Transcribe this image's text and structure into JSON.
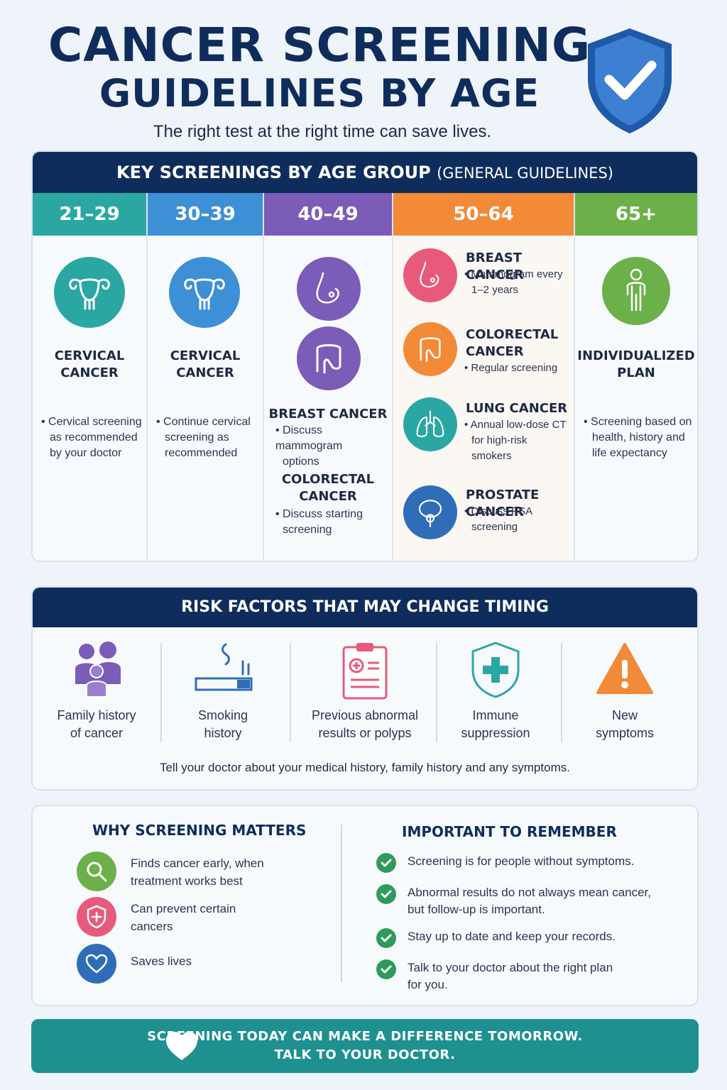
{
  "header": {
    "title_line1": "CANCER SCREENING",
    "title_line2": "GUIDELINES BY AGE",
    "subtitle": "The right test at the right time can save lives.",
    "shield_icon": "shield-check-icon"
  },
  "key_screenings": {
    "heading": "KEY SCREENINGS BY AGE GROUP",
    "heading_suffix": "(GENERAL GUIDELINES)",
    "columns": [
      {
        "age": "21–29",
        "color": "#2aa7a3",
        "items": [
          {
            "icon": "uterus-icon",
            "title_line1": "CERVICAL",
            "title_line2": "CANCER",
            "note": [
              "Cervical screening",
              "as recommended",
              "by your doctor"
            ]
          }
        ]
      },
      {
        "age": "30–39",
        "color": "#3d8fd6",
        "items": [
          {
            "icon": "uterus-icon",
            "title_line1": "CERVICAL",
            "title_line2": "CANCER",
            "note": [
              "Continue cervical",
              "screening as",
              "recommended"
            ]
          }
        ]
      },
      {
        "age": "40–49",
        "color": "#7b5cb8",
        "items": [
          {
            "icon": "breast-icon",
            "title_line1": "BREAST CANCER",
            "note": [
              "Discuss mammogram",
              "options"
            ]
          },
          {
            "icon": "colon-icon",
            "title_line1": "COLORECTAL",
            "title_line2": "CANCER",
            "note": [
              "Discuss starting",
              "screening"
            ]
          }
        ]
      },
      {
        "age": "50–64",
        "color": "#f28a38",
        "items": [
          {
            "icon": "breast-icon",
            "color": "#e85a7c",
            "title_line1": "BREAST CANCER",
            "note": [
              "Mammogram every",
              "1–2 years"
            ]
          },
          {
            "icon": "colon-icon",
            "color": "#f28a38",
            "title_line1": "COLORECTAL",
            "title_line2": "CANCER",
            "note": [
              "Regular screening"
            ]
          },
          {
            "icon": "lungs-icon",
            "color": "#2aa7a3",
            "title_line1": "LUNG CANCER",
            "note": [
              "Annual low-dose CT",
              "for high-risk",
              "smokers"
            ]
          },
          {
            "icon": "prostate-icon",
            "color": "#2f6db8",
            "title_line1": "PROSTATE CANCER",
            "note": [
              "Discuss PSA",
              "screening"
            ]
          }
        ]
      },
      {
        "age": "65+",
        "color": "#6cb04a",
        "items": [
          {
            "icon": "person-icon",
            "title_line1": "INDIVIDUALIZED",
            "title_line2": "PLAN",
            "note": [
              "Screening based on",
              "health, history and",
              "life expectancy"
            ]
          }
        ]
      }
    ]
  },
  "risk_factors": {
    "heading": "RISK FACTORS THAT MAY CHANGE TIMING",
    "items": [
      {
        "icon": "family-icon",
        "line1": "Family history",
        "line2": "of cancer",
        "color": "#7b5cb8"
      },
      {
        "icon": "cigarette-icon",
        "line1": "Smoking",
        "line2": "history",
        "color": "#2f6db8"
      },
      {
        "icon": "clipboard-icon",
        "line1": "Previous abnormal",
        "line2": "results or polyps",
        "color": "#e85a7c"
      },
      {
        "icon": "shield-plus-icon",
        "line1": "Immune",
        "line2": "suppression",
        "color": "#2aa7a3"
      },
      {
        "icon": "warning-icon",
        "line1": "New",
        "line2": "symptoms",
        "color": "#f28a38"
      }
    ],
    "note": "Tell your doctor about your medical history, family history and any symptoms."
  },
  "why_matters": {
    "heading": "WHY SCREENING MATTERS",
    "items": [
      {
        "icon": "magnifier-icon",
        "color": "#6cb04a",
        "line1": "Finds cancer early, when",
        "line2": "treatment works best"
      },
      {
        "icon": "shield-plus-icon",
        "color": "#e85a7c",
        "line1": "Can prevent certain",
        "line2": "cancers"
      },
      {
        "icon": "heart-icon",
        "color": "#2f6db8",
        "line1": "Saves lives",
        "line2": ""
      }
    ]
  },
  "important": {
    "heading": "IMPORTANT TO REMEMBER",
    "items": [
      {
        "line1": "Screening is for people without symptoms.",
        "line2": ""
      },
      {
        "line1": "Abnormal results do not always mean cancer,",
        "line2": "but follow-up is important."
      },
      {
        "line1": "Stay up to date and keep your records.",
        "line2": ""
      },
      {
        "line1": "Talk to your doctor about the right plan",
        "line2": "for you."
      }
    ]
  },
  "footer": {
    "icon": "heart-icon",
    "line1": "SCREENING TODAY CAN MAKE A DIFFERENCE TOMORROW.",
    "line2": "TALK TO YOUR DOCTOR.",
    "color": "#1e9090"
  }
}
